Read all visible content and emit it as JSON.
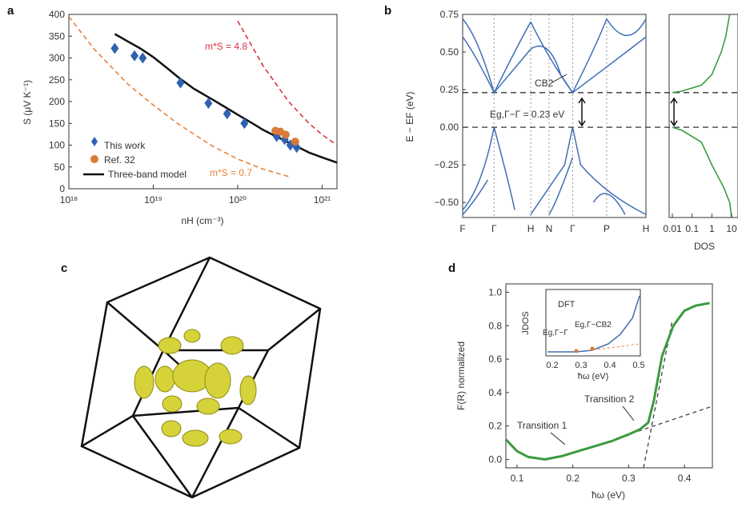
{
  "panels": {
    "a": {
      "letter": "a"
    },
    "b": {
      "letter": "b"
    },
    "c": {
      "letter": "c"
    },
    "d": {
      "letter": "d"
    }
  },
  "chart_data": [
    {
      "id": "a",
      "type": "scatter",
      "xlabel": "nH (cm⁻³)",
      "ylabel": "S (μV K⁻¹)",
      "xscale": "log",
      "xlim": [
        1e+18,
        1.5e+21
      ],
      "ylim": [
        0,
        400
      ],
      "xticks": [
        "10¹⁸",
        "10¹⁹",
        "10²⁰",
        "10²¹"
      ],
      "yticks": [
        0,
        50,
        100,
        150,
        200,
        250,
        300,
        350,
        400
      ],
      "legend_position": "bottom-left",
      "legend": [
        "This work",
        "Ref. 32",
        "Three-band model"
      ],
      "series": [
        {
          "name": "This work",
          "marker": "diamond",
          "color": "#2f62b0",
          "x": [
            3.5e+18,
            6e+18,
            7.5e+18,
            2.1e+19,
            4.5e+19,
            7.5e+19,
            1.2e+20,
            2.9e+20,
            3.6e+20,
            4.2e+20,
            5e+20
          ],
          "y": [
            322,
            305,
            300,
            243,
            196,
            172,
            150,
            120,
            113,
            100,
            95
          ]
        },
        {
          "name": "Ref. 32",
          "marker": "circle",
          "color": "#d97b36",
          "x": [
            2.8e+20,
            3.2e+20,
            3.7e+20,
            4.8e+20
          ],
          "y": [
            133,
            131,
            124,
            108
          ]
        },
        {
          "name": "Three-band model",
          "style": "solid",
          "color": "#111111",
          "x": [
            3.5e+18,
            5e+18,
            7e+18,
            1e+19,
            1.5e+19,
            2e+19,
            3e+19,
            5e+19,
            7e+19,
            1e+20,
            1.5e+20,
            2e+20,
            3e+20,
            5e+20,
            7e+20,
            1e+21,
            1.5e+21
          ],
          "y": [
            355,
            338,
            322,
            302,
            275,
            255,
            230,
            205,
            188,
            170,
            150,
            135,
            118,
            97,
            83,
            72,
            60
          ]
        },
        {
          "name": "m*S = 4.8",
          "style": "dashed",
          "color": "#d9343f",
          "x": [
            1e+20,
            2e+20,
            4e+20,
            7e+20,
            1e+21,
            1.5e+21
          ],
          "y": [
            385,
            282,
            200,
            150,
            124,
            100
          ]
        },
        {
          "name": "m*S = 0.7",
          "style": "dashed",
          "color": "#e8823a",
          "x": [
            1e+18,
            2e+18,
            5e+18,
            1e+19,
            2e+19,
            5e+19,
            1e+20,
            2e+20,
            4e+20
          ],
          "y": [
            395,
            320,
            240,
            192,
            148,
            98,
            68,
            45,
            28
          ]
        }
      ],
      "annotations": [
        {
          "text": "m*S = 4.8",
          "color": "#d9343f"
        },
        {
          "text": "m*S = 0.7",
          "color": "#e8823a"
        }
      ]
    },
    {
      "id": "b-bands",
      "type": "line",
      "ylabel": "E − EF (eV)",
      "ylim": [
        -0.6,
        0.75
      ],
      "yticks": [
        "0.75",
        "0.50",
        "0.25",
        "0.00",
        "−0.25",
        "−0.50"
      ],
      "ytick_values": [
        0.75,
        0.5,
        0.25,
        0.0,
        -0.25,
        -0.5
      ],
      "k_labels": [
        "F",
        "Γ",
        "H",
        "N",
        "Γ",
        "P",
        "H"
      ],
      "k_positions": [
        0,
        1.2,
        2.6,
        3.3,
        4.2,
        5.5,
        7.0
      ],
      "hlines": [
        0.23,
        0.0
      ],
      "gap_label": "Eg,Γ−Γ = 0.23 eV",
      "cb2_label": "CB2",
      "color": "#3f6fb5"
    },
    {
      "id": "b-dos",
      "type": "line",
      "xlabel": "DOS",
      "xscale": "log",
      "xticks": [
        "0.01",
        "0.1",
        "1",
        "10"
      ],
      "ylim": [
        -0.6,
        0.75
      ],
      "hlines": [
        0.23,
        0.0
      ],
      "color": "#3c9a3f"
    },
    {
      "id": "d",
      "type": "line",
      "xlabel": "ħω (eV)",
      "ylabel": "F(R) normalized",
      "xlim": [
        0.08,
        0.45
      ],
      "ylim": [
        -0.05,
        1.05
      ],
      "xticks": [
        0.1,
        0.2,
        0.3,
        0.4
      ],
      "yticks": [
        0.0,
        0.2,
        0.4,
        0.6,
        0.8,
        1.0
      ],
      "series": [
        {
          "name": "F(R)",
          "color": "#3c9a3f",
          "x": [
            0.08,
            0.1,
            0.12,
            0.15,
            0.18,
            0.21,
            0.24,
            0.27,
            0.3,
            0.32,
            0.335,
            0.345,
            0.36,
            0.38,
            0.4,
            0.42,
            0.445
          ],
          "y": [
            0.12,
            0.05,
            0.015,
            0.0,
            0.02,
            0.05,
            0.08,
            0.11,
            0.15,
            0.18,
            0.22,
            0.35,
            0.62,
            0.8,
            0.89,
            0.92,
            0.935
          ]
        }
      ],
      "annotations": [
        "Transition 1",
        "Transition 2"
      ],
      "inset": {
        "title": "DFT",
        "ylabel": "JDOS",
        "xlabel": "ħω (eV)",
        "xticks": [
          0.2,
          0.3,
          0.4,
          0.5
        ],
        "labels": [
          "Eg,Γ−Γ",
          "Eg,Γ−CB2"
        ]
      }
    }
  ]
}
